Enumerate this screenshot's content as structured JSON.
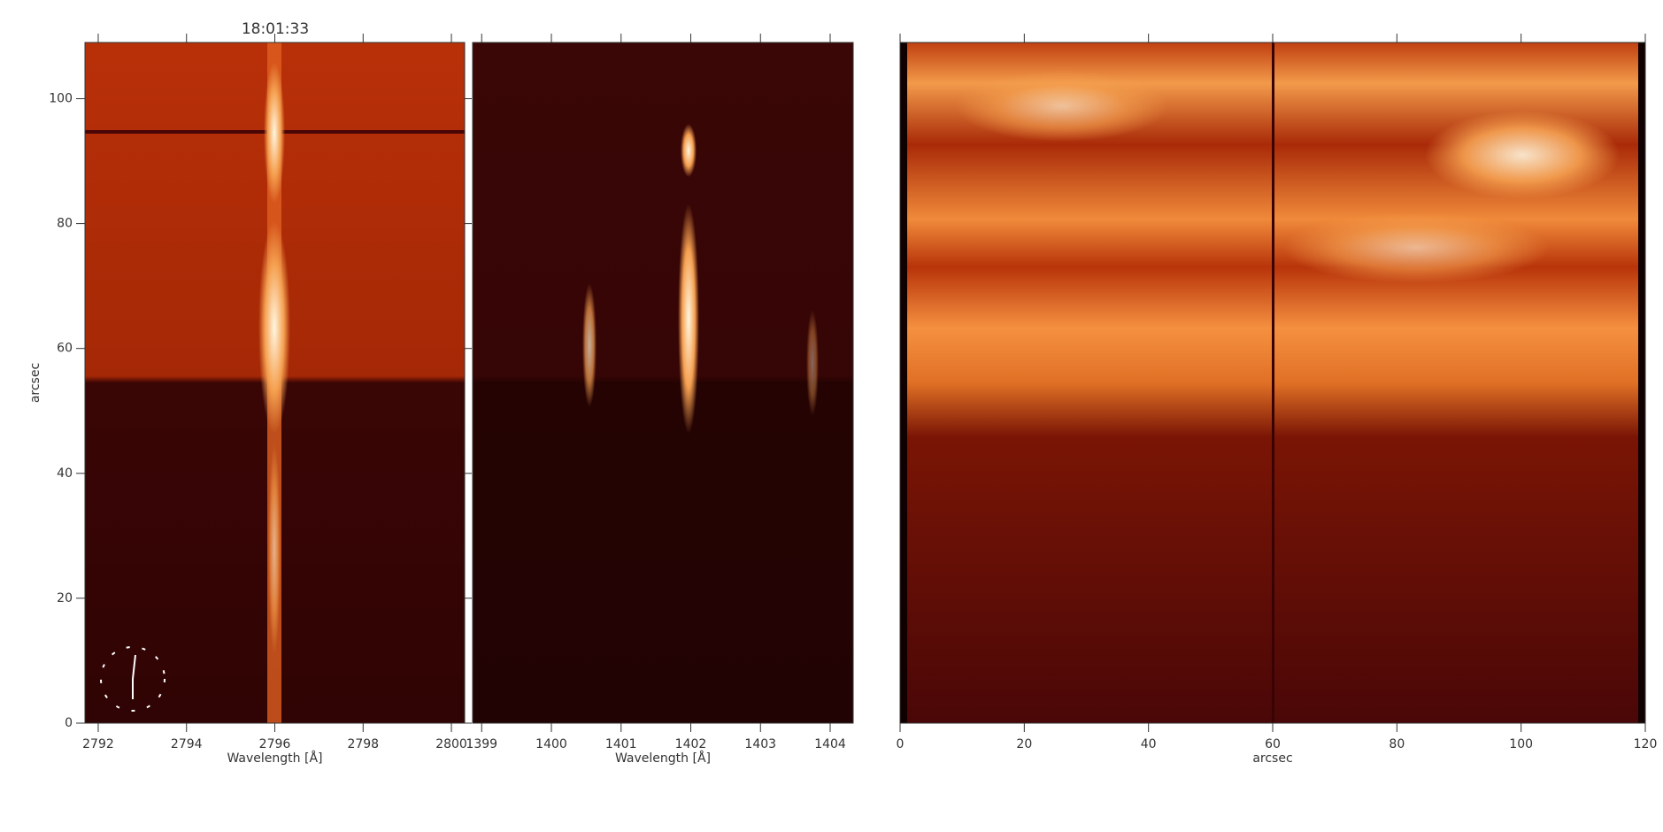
{
  "title": "18:01:33",
  "chart_data": [
    {
      "type": "image",
      "xlabel": "Wavelength [Å]",
      "ylabel": "arcsec",
      "xlim": [
        2791.7,
        2800.3
      ],
      "ylim": [
        0,
        109
      ],
      "xticks": [
        2792,
        2794,
        2796,
        2798,
        2800
      ],
      "yticks": [
        0,
        20,
        40,
        60,
        80,
        100
      ]
    },
    {
      "type": "image",
      "xlabel": "Wavelength [Å]",
      "xlim": [
        1398.87,
        1404.33
      ],
      "ylim": [
        0,
        109
      ],
      "xticks": [
        1399,
        1400,
        1401,
        1402,
        1403,
        1404
      ]
    },
    {
      "type": "image",
      "xlabel": "arcsec",
      "xlim": [
        0,
        120
      ],
      "ylim": [
        0,
        109
      ],
      "xticks": [
        0,
        20,
        40,
        60,
        80,
        100,
        120
      ]
    }
  ]
}
